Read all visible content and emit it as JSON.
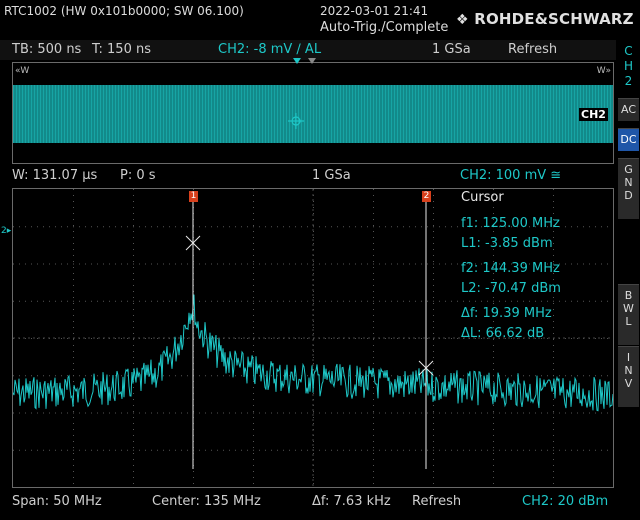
{
  "header": {
    "device": "RTC1002 (HW 0x101b0000; SW 06.100)",
    "datetime": "2022-03-01 21:41",
    "acquisition": "Auto-Trig./Complete",
    "brand": "ROHDE&SCHWARZ"
  },
  "info_bar": {
    "timebase": "TB: 500 ns",
    "trigger_time": "T: 150 ns",
    "trigger": "CH2: -8 mV ∕ AL",
    "sample_rate": "1 GSa",
    "mode": "Refresh"
  },
  "overview": {
    "left_marker": "«W",
    "right_marker": "W»",
    "channel_tag": "CH2"
  },
  "fft_bar": {
    "window": "W: 131.07 µs",
    "position": "P: 0 s",
    "sample_rate": "1 GSa",
    "scale": "CH2: 100 mV ≅"
  },
  "cursor": {
    "title": "Cursor",
    "f1": "f1: 125.00 MHz",
    "l1": "L1: -3.85 dBm",
    "f2": "f2: 144.39 MHz",
    "l2": "L2: -70.47 dBm",
    "df": "Δf: 19.39 MHz",
    "dl": "ΔL: 66.62 dB",
    "marker1": "1",
    "marker2": "2"
  },
  "bottom_bar": {
    "span": "Span: 50 MHz",
    "center": "Center: 135 MHz",
    "resolution": "Δf: 7.63 kHz",
    "mode": "Refresh",
    "scale": "CH2: 20 dBm"
  },
  "right_panel": {
    "channel": "C\nH\n2",
    "ac": "AC",
    "dc": "DC",
    "gnd": "G\nN\nD",
    "bwl": "B\nW\nL",
    "inv": "I\nN\nV"
  },
  "colors": {
    "trace": "#1ec8c8",
    "active": "#1f56a8",
    "marker": "#d8401c"
  }
}
